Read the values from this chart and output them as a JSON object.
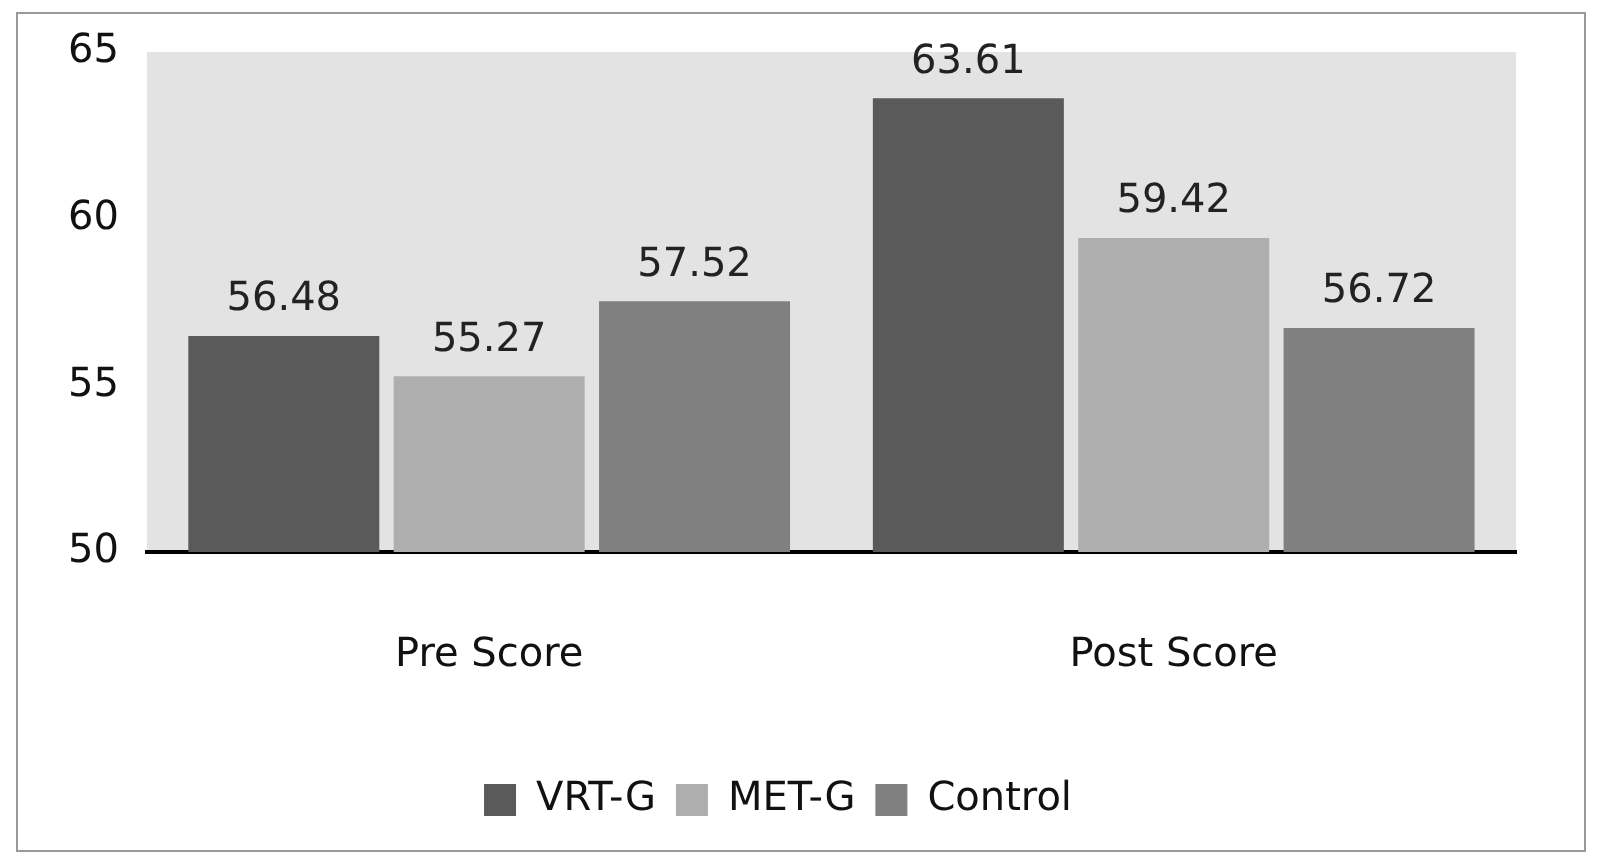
{
  "chart_data": {
    "type": "bar",
    "categories": [
      "Pre Score",
      "Post Score"
    ],
    "series": [
      {
        "name": "VRT-G",
        "color": "#5a5a5a",
        "values": [
          56.48,
          63.61
        ]
      },
      {
        "name": "MET-G",
        "color": "#aeaeae",
        "values": [
          55.27,
          59.42
        ]
      },
      {
        "name": "Control",
        "color": "#808080",
        "values": [
          57.52,
          56.72
        ]
      }
    ],
    "ylim": [
      50,
      65
    ],
    "yticks": [
      50,
      55,
      60,
      65
    ],
    "grid": false,
    "legend": "bottom",
    "data_labels": true
  }
}
